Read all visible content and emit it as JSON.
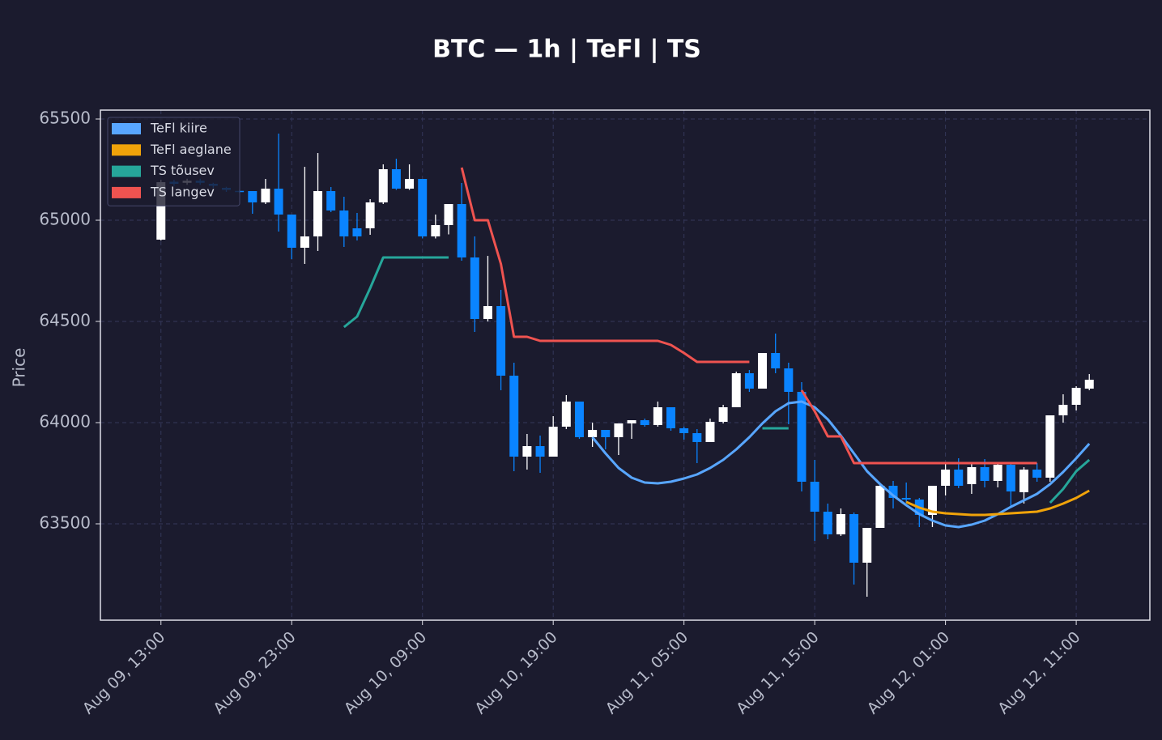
{
  "chart_data": {
    "type": "candlestick",
    "title": "BTC — 1h  |  TeFl  |  TS",
    "y_label": "Price",
    "x": [
      "Aug 09, 13:00",
      "Aug 09, 14:00",
      "Aug 09, 15:00",
      "Aug 09, 16:00",
      "Aug 09, 17:00",
      "Aug 09, 18:00",
      "Aug 09, 19:00",
      "Aug 09, 20:00",
      "Aug 09, 21:00",
      "Aug 09, 22:00",
      "Aug 09, 23:00",
      "Aug 10, 00:00",
      "Aug 10, 01:00",
      "Aug 10, 02:00",
      "Aug 10, 03:00",
      "Aug 10, 04:00",
      "Aug 10, 05:00",
      "Aug 10, 06:00",
      "Aug 10, 07:00",
      "Aug 10, 08:00",
      "Aug 10, 09:00",
      "Aug 10, 10:00",
      "Aug 10, 11:00",
      "Aug 10, 12:00",
      "Aug 10, 13:00",
      "Aug 10, 14:00",
      "Aug 10, 15:00",
      "Aug 10, 16:00",
      "Aug 10, 17:00",
      "Aug 10, 18:00",
      "Aug 10, 19:00",
      "Aug 10, 20:00",
      "Aug 10, 21:00",
      "Aug 10, 22:00",
      "Aug 10, 23:00",
      "Aug 11, 00:00",
      "Aug 11, 01:00",
      "Aug 11, 02:00",
      "Aug 11, 03:00",
      "Aug 11, 04:00",
      "Aug 11, 05:00",
      "Aug 11, 06:00",
      "Aug 11, 07:00",
      "Aug 11, 08:00",
      "Aug 11, 09:00",
      "Aug 11, 10:00",
      "Aug 11, 11:00",
      "Aug 11, 12:00",
      "Aug 11, 13:00",
      "Aug 11, 14:00",
      "Aug 11, 15:00",
      "Aug 11, 16:00",
      "Aug 11, 17:00",
      "Aug 11, 18:00",
      "Aug 11, 19:00",
      "Aug 11, 20:00",
      "Aug 11, 21:00",
      "Aug 11, 22:00",
      "Aug 11, 23:00",
      "Aug 12, 00:00",
      "Aug 12, 01:00",
      "Aug 12, 02:00",
      "Aug 12, 03:00",
      "Aug 12, 04:00",
      "Aug 12, 05:00",
      "Aug 12, 06:00",
      "Aug 12, 07:00",
      "Aug 12, 08:00",
      "Aug 12, 09:00",
      "Aug 12, 10:00",
      "Aug 12, 11:00",
      "Aug 12, 12:00"
    ],
    "open": [
      64904,
      65190,
      65185,
      65195,
      65180,
      65160,
      65145,
      65144,
      65088,
      65156,
      65028,
      64864,
      64920,
      65144,
      65048,
      64960,
      64960,
      65088,
      65252,
      65156,
      65204,
      64920,
      64976,
      65080,
      64816,
      64512,
      64576,
      64232,
      63832,
      63884,
      63832,
      63980,
      64104,
      63928,
      63964,
      63928,
      63996,
      64012,
      63988,
      64076,
      63972,
      63948,
      63904,
      64004,
      64076,
      64244,
      64168,
      64344,
      64268,
      64152,
      63708,
      63560,
      63448,
      63548,
      63308,
      63480,
      63688,
      63628,
      63620,
      63544,
      63688,
      63768,
      63696,
      63780,
      63712,
      63792,
      63656,
      63768,
      63728,
      64036,
      64088,
      64168
    ],
    "high": [
      65200,
      65200,
      65205,
      65205,
      65185,
      65165,
      65150,
      65144,
      65204,
      65428,
      65028,
      65264,
      65332,
      65164,
      65116,
      65036,
      65104,
      65276,
      65304,
      65276,
      65204,
      65028,
      65080,
      65184,
      64920,
      64824,
      64656,
      64296,
      63944,
      63936,
      64032,
      64136,
      64104,
      64000,
      63964,
      63996,
      64012,
      64020,
      64104,
      64076,
      63980,
      63968,
      64020,
      64088,
      64252,
      64260,
      64344,
      64440,
      64296,
      64200,
      63816,
      63600,
      63576,
      63556,
      63480,
      63696,
      63712,
      63704,
      63628,
      63688,
      63800,
      63824,
      63800,
      63820,
      63800,
      63800,
      63780,
      63800,
      64036,
      64140,
      64180,
      64240
    ],
    "low": [
      64900,
      65170,
      65175,
      65175,
      65160,
      65140,
      65135,
      65032,
      65080,
      64944,
      64808,
      64784,
      64848,
      65040,
      64868,
      64900,
      64928,
      65080,
      65150,
      65150,
      64910,
      64910,
      64930,
      64800,
      64448,
      64500,
      64160,
      63760,
      63768,
      63752,
      63832,
      63968,
      63920,
      63880,
      63868,
      63840,
      63920,
      63980,
      63980,
      63960,
      63916,
      63800,
      63904,
      63996,
      64076,
      64152,
      64168,
      64244,
      63992,
      63660,
      63416,
      63424,
      63440,
      63200,
      63140,
      63480,
      63576,
      63604,
      63484,
      63484,
      63640,
      63676,
      63648,
      63680,
      63680,
      63580,
      63600,
      63708,
      63708,
      64000,
      64060,
      64160
    ],
    "close": [
      65188,
      65180,
      65195,
      65185,
      65170,
      65150,
      65140,
      65088,
      65156,
      65028,
      64864,
      64920,
      65144,
      65048,
      64920,
      64920,
      65088,
      65252,
      65156,
      65204,
      64920,
      64976,
      65080,
      64816,
      64512,
      64576,
      64232,
      63832,
      63884,
      63832,
      63980,
      64104,
      63928,
      63964,
      63928,
      63996,
      64012,
      63988,
      64076,
      63972,
      63948,
      63904,
      64004,
      64076,
      64244,
      64168,
      64344,
      64268,
      64152,
      63708,
      63560,
      63448,
      63548,
      63308,
      63480,
      63688,
      63628,
      63620,
      63544,
      63688,
      63768,
      63688,
      63780,
      63712,
      63792,
      63660,
      63768,
      63728,
      64036,
      64088,
      64172,
      64212
    ],
    "up_color": "#ffffff",
    "down_color": "#0a84ff",
    "series": [
      {
        "name": "TeFl kiire",
        "color": "#58a6ff",
        "values": [
          null,
          null,
          null,
          null,
          null,
          null,
          null,
          null,
          null,
          null,
          null,
          null,
          null,
          null,
          null,
          null,
          null,
          null,
          null,
          null,
          null,
          null,
          null,
          null,
          null,
          null,
          null,
          null,
          null,
          null,
          null,
          null,
          null,
          63928,
          63848,
          63776,
          63728,
          63704,
          63700,
          63708,
          63724,
          63744,
          63776,
          63816,
          63868,
          63928,
          63996,
          64056,
          64096,
          64104,
          64076,
          64016,
          63936,
          63848,
          63760,
          63696,
          63640,
          63592,
          63548,
          63516,
          63492,
          63484,
          63496,
          63516,
          63548,
          63584,
          63616,
          63648,
          63696,
          63756,
          63824,
          63896
        ]
      },
      {
        "name": "TeFl aeglane",
        "color": "#f0a30a",
        "values": [
          null,
          null,
          null,
          null,
          null,
          null,
          null,
          null,
          null,
          null,
          null,
          null,
          null,
          null,
          null,
          null,
          null,
          null,
          null,
          null,
          null,
          null,
          null,
          null,
          null,
          null,
          null,
          null,
          null,
          null,
          null,
          null,
          null,
          null,
          null,
          null,
          null,
          null,
          null,
          null,
          null,
          null,
          null,
          null,
          null,
          null,
          null,
          null,
          null,
          null,
          null,
          null,
          null,
          null,
          null,
          null,
          null,
          63608,
          63580,
          63560,
          63552,
          63548,
          63544,
          63544,
          63548,
          63552,
          63556,
          63560,
          63576,
          63600,
          63628,
          63664
        ]
      },
      {
        "name": "TS tõusev",
        "color": "#26a69a",
        "values": [
          null,
          null,
          null,
          null,
          null,
          null,
          null,
          null,
          null,
          null,
          null,
          null,
          null,
          null,
          64472,
          64524,
          64664,
          64816,
          64816,
          64816,
          64816,
          64816,
          64816,
          null,
          null,
          null,
          null,
          null,
          null,
          null,
          null,
          null,
          null,
          null,
          null,
          null,
          null,
          null,
          null,
          null,
          null,
          null,
          null,
          null,
          null,
          null,
          63972,
          63972,
          63972,
          null,
          null,
          null,
          null,
          null,
          null,
          null,
          null,
          null,
          null,
          null,
          null,
          null,
          null,
          null,
          null,
          null,
          null,
          null,
          63604,
          63672,
          63760,
          63816
        ]
      },
      {
        "name": "TS langev",
        "color": "#ef5350",
        "values": [
          null,
          null,
          null,
          null,
          null,
          null,
          null,
          null,
          null,
          null,
          null,
          null,
          null,
          null,
          null,
          null,
          null,
          null,
          null,
          null,
          null,
          null,
          null,
          65260,
          65000,
          65000,
          64784,
          64424,
          64424,
          64404,
          64404,
          64404,
          64404,
          64404,
          64404,
          64404,
          64404,
          64404,
          64404,
          64384,
          64344,
          64300,
          64300,
          64300,
          64300,
          64300,
          null,
          null,
          null,
          64160,
          64056,
          63932,
          63932,
          63800,
          63800,
          63800,
          63800,
          63800,
          63800,
          63800,
          63800,
          63800,
          63800,
          63800,
          63800,
          63800,
          63800,
          63800,
          null,
          null,
          null,
          null
        ]
      }
    ],
    "ylim": [
      63024,
      65544
    ],
    "yticks": [
      63500,
      64000,
      64500,
      65000,
      65500
    ],
    "xticks": [
      "Aug 09, 13:00",
      "Aug 09, 23:00",
      "Aug 10, 09:00",
      "Aug 10, 19:00",
      "Aug 11, 05:00",
      "Aug 11, 15:00",
      "Aug 12, 01:00",
      "Aug 12, 11:00"
    ],
    "grid": true,
    "legend": "upper left"
  }
}
